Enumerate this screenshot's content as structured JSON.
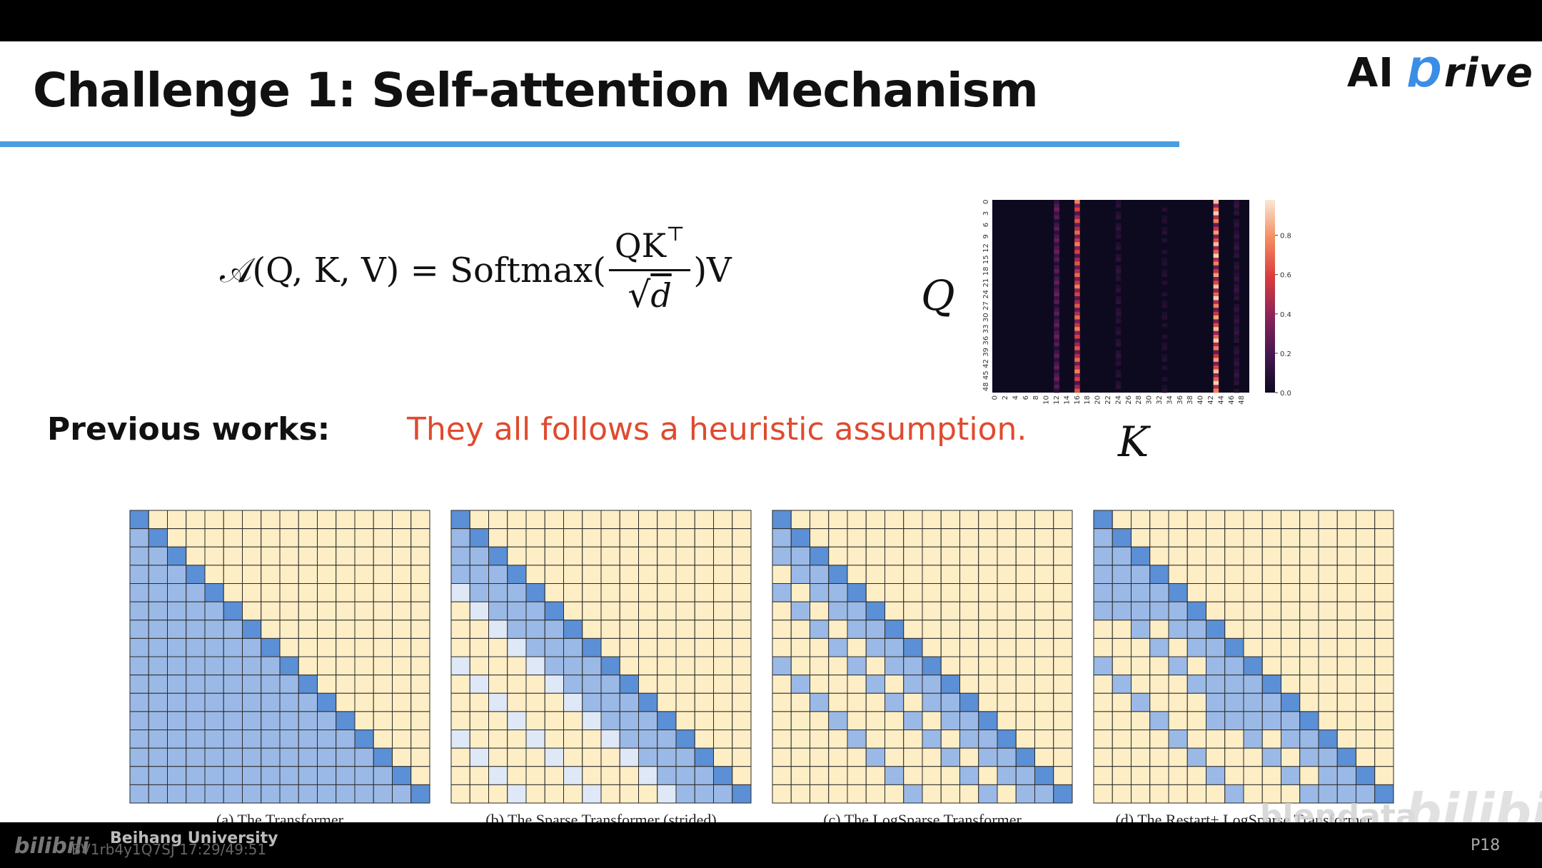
{
  "slide": {
    "title": "Challenge 1: Self-attention Mechanism",
    "logo": {
      "ai": "AI",
      "rest": "rive",
      "icon": "gear-d-icon",
      "accent_color": "#3a8ee6"
    },
    "formula": {
      "lhs": "𝒜(Q, K, V) = Softmax(",
      "numerator": "QK",
      "numerator_sup": "⊤",
      "denominator_root": "√",
      "denominator_var": "d",
      "rhs": ")V"
    },
    "heatmap": {
      "q_label": "Q",
      "k_label": "K",
      "y_ticks": [
        "0",
        "3",
        "6",
        "9",
        "12",
        "15",
        "18",
        "21",
        "24",
        "27",
        "30",
        "33",
        "36",
        "39",
        "42",
        "45",
        "48"
      ],
      "x_ticks": [
        "0",
        "2",
        "4",
        "6",
        "8",
        "10",
        "12",
        "14",
        "16",
        "18",
        "20",
        "22",
        "24",
        "26",
        "28",
        "30",
        "32",
        "34",
        "36",
        "38",
        "40",
        "42",
        "44",
        "46",
        "48"
      ],
      "colorbar_ticks": [
        "0.8",
        "0.6",
        "0.4",
        "0.2",
        "0.0"
      ],
      "colorbar_values": [
        0.8,
        0.6,
        0.4,
        0.2,
        0.0
      ]
    },
    "previous_works_label": "Previous works:",
    "assumption_text": "They all follows a heuristic assumption.",
    "assumption_color": "#e04a2e",
    "panels": [
      {
        "caption": "(a) The Transformer",
        "pattern": "full"
      },
      {
        "caption": "(b) The Sparse Transformer (strided)",
        "pattern": "strided"
      },
      {
        "caption": "(c) The LogSparse Transformer",
        "pattern": "logsparse"
      },
      {
        "caption": "(d) The Restart+ LogSparse Transformer",
        "pattern": "restart"
      }
    ],
    "colors": {
      "masked": "#fdeec6",
      "attended": "#9bb9e6",
      "diagonal": "#5b8fd6",
      "light": "#dfe8f7",
      "rule": "#4a9ee0"
    }
  },
  "watermark": {
    "bilibili": "bilibili",
    "video_id": "BV1rb4y1Q7SJ 17:29/49:51",
    "university": "Beihang University",
    "blendata": "blendata",
    "bilibili_large": "bilibili",
    "page": "P18"
  }
}
